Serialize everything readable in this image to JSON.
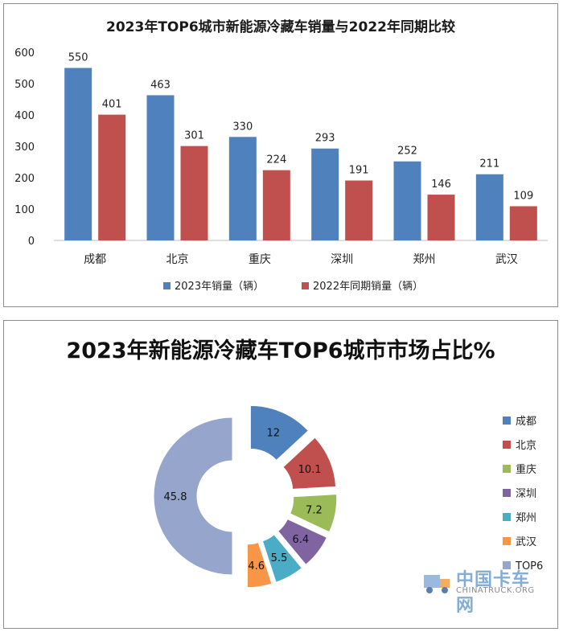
{
  "chart_data": [
    {
      "type": "bar",
      "title": "2023年TOP6城市新能源冷藏车销量与2022年同期比较",
      "categories": [
        "成都",
        "北京",
        "重庆",
        "深圳",
        "郑州",
        "武汉"
      ],
      "series": [
        {
          "name": "2023年销量（辆）",
          "values": [
            550,
            463,
            330,
            293,
            252,
            211
          ],
          "color": "#4f81bd"
        },
        {
          "name": "2022年同期销量（辆）",
          "values": [
            401,
            301,
            224,
            191,
            146,
            109
          ],
          "color": "#c0504d"
        }
      ],
      "ylim": [
        0,
        600
      ],
      "yticks": [
        0,
        100,
        200,
        300,
        400,
        500,
        600
      ],
      "grid": false,
      "legend": "bottom"
    },
    {
      "type": "pie",
      "title": "2023年新能源冷藏车TOP6城市市场占比%",
      "categories": [
        "成都",
        "北京",
        "重庆",
        "深圳",
        "郑州",
        "武汉",
        "TOP6"
      ],
      "values": [
        12,
        10.1,
        7.2,
        6.4,
        5.5,
        4.6,
        45.8
      ],
      "labels": [
        "12",
        "10.1",
        "7.2",
        "6.4",
        "5.5",
        "4.6",
        "45.8"
      ],
      "colors": [
        "#4f81bd",
        "#c0504d",
        "#9bbb59",
        "#8064a2",
        "#4bacc6",
        "#f79646",
        "#95a5cc"
      ],
      "donut": true,
      "exploded": true,
      "legend": "right"
    }
  ],
  "watermark": {
    "title": "中国卡车网",
    "subtitle": "CHINATRUCK.ORG"
  }
}
